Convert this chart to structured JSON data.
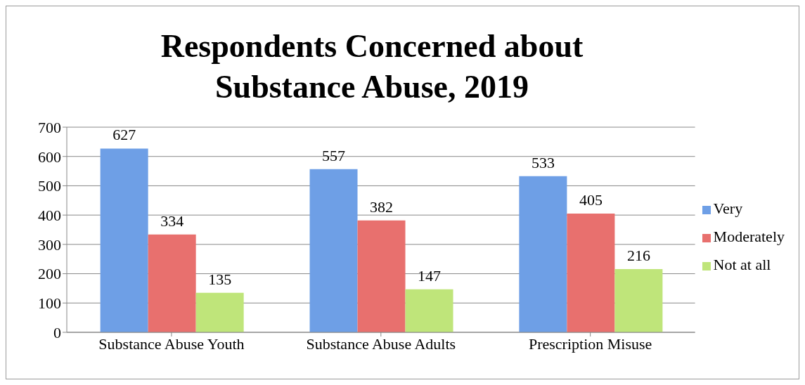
{
  "chart_data": {
    "type": "bar",
    "title": "Respondents Concerned about Substance Abuse, 2019",
    "categories": [
      "Substance Abuse Youth",
      "Substance Abuse Adults",
      "Prescription Misuse"
    ],
    "series": [
      {
        "name": "Very",
        "color": "#6e9fe6",
        "values": [
          627,
          557,
          533
        ]
      },
      {
        "name": "Moderately",
        "color": "#e8706e",
        "values": [
          334,
          382,
          405
        ]
      },
      {
        "name": "Not at all",
        "color": "#bfe57a",
        "values": [
          135,
          147,
          216
        ]
      }
    ],
    "ylim": [
      0,
      700
    ],
    "yticks": [
      0,
      100,
      200,
      300,
      400,
      500,
      600,
      700
    ],
    "grid": "y",
    "legend": "right",
    "data_labels": true
  }
}
